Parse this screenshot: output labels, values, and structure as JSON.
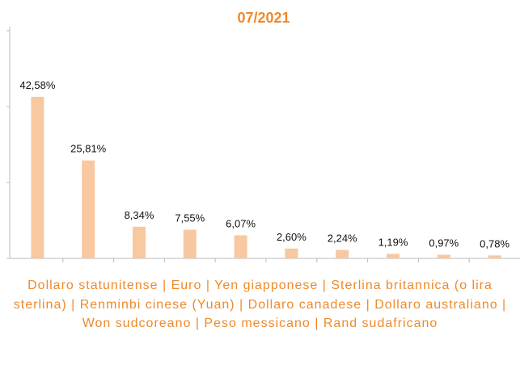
{
  "chart_data": {
    "type": "bar",
    "title": "07/2021",
    "categories": [
      null,
      null,
      null,
      null,
      null,
      null,
      null,
      null,
      null,
      null
    ],
    "values": [
      42.58,
      25.81,
      8.34,
      7.55,
      6.07,
      2.6,
      2.24,
      1.19,
      0.97,
      0.78
    ],
    "value_labels": [
      "42,58%",
      "25,81%",
      "8,34%",
      "7,55%",
      "6,07%",
      "2,60%",
      "2,24%",
      "1,19%",
      "0,97%",
      "0,78%"
    ],
    "color": "#f8c8a0",
    "ylim": [
      0,
      60
    ],
    "yticks": [
      0,
      20,
      40,
      60
    ],
    "x_label": "Dollaro statunitense | Euro | Yen giapponese | Sterlina britannica (o lira sterlina) | Renminbi cinese (Yuan) | Dollaro canadese | Dollaro australiano | Won sudcoreano | Peso messicano | Rand sudafricano"
  }
}
